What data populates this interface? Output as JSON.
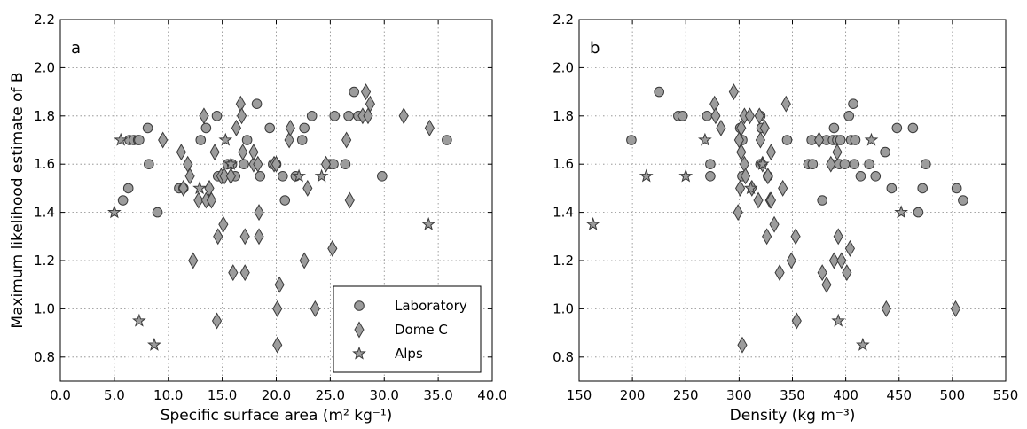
{
  "chart_data": [
    {
      "type": "scatter",
      "panel_label": "a",
      "xlabel": "Specific surface area (m² kg⁻¹)",
      "ylabel": "Maximum likelihood estimate of B",
      "xlim": [
        0,
        40
      ],
      "ylim": [
        0.7,
        2.2
      ],
      "xticks": [
        "0.0",
        "5.0",
        "10.0",
        "15.0",
        "20.0",
        "25.0",
        "30.0",
        "35.0",
        "40.0"
      ],
      "yticks": [
        "0.8",
        "1.0",
        "1.2",
        "1.4",
        "1.6",
        "1.8",
        "2.0",
        "2.2"
      ],
      "grid": true,
      "legend_position": "lower-right",
      "series": [
        {
          "name": "Laboratory",
          "marker": "circle",
          "points": [
            [
              5.8,
              1.45
            ],
            [
              6.3,
              1.5
            ],
            [
              6.4,
              1.7
            ],
            [
              6.8,
              1.7
            ],
            [
              7.2,
              1.7
            ],
            [
              7.3,
              1.7
            ],
            [
              8.2,
              1.6
            ],
            [
              8.1,
              1.75
            ],
            [
              9.0,
              1.4
            ],
            [
              11.0,
              1.5
            ],
            [
              11.4,
              1.5
            ],
            [
              13.0,
              1.7
            ],
            [
              13.5,
              1.75
            ],
            [
              13.8,
              1.45
            ],
            [
              14.5,
              1.8
            ],
            [
              14.6,
              1.55
            ],
            [
              15.5,
              1.6
            ],
            [
              15.9,
              1.6
            ],
            [
              16.2,
              1.55
            ],
            [
              17.0,
              1.6
            ],
            [
              17.3,
              1.7
            ],
            [
              18.1,
              1.6
            ],
            [
              18.2,
              1.85
            ],
            [
              18.5,
              1.55
            ],
            [
              19.4,
              1.75
            ],
            [
              19.7,
              1.6
            ],
            [
              20.0,
              1.6
            ],
            [
              20.6,
              1.55
            ],
            [
              20.8,
              1.45
            ],
            [
              21.8,
              1.55
            ],
            [
              22.4,
              1.7
            ],
            [
              22.6,
              1.75
            ],
            [
              23.3,
              1.8
            ],
            [
              24.7,
              1.6
            ],
            [
              25.0,
              1.6
            ],
            [
              25.3,
              1.6
            ],
            [
              25.4,
              1.8
            ],
            [
              26.4,
              1.6
            ],
            [
              26.7,
              1.8
            ],
            [
              27.2,
              1.9
            ],
            [
              27.6,
              1.8
            ],
            [
              29.8,
              1.55
            ],
            [
              35.8,
              1.7
            ]
          ]
        },
        {
          "name": "Dome C",
          "marker": "diamond",
          "points": [
            [
              9.5,
              1.7
            ],
            [
              11.2,
              1.65
            ],
            [
              11.4,
              1.5
            ],
            [
              11.8,
              1.6
            ],
            [
              12.0,
              1.55
            ],
            [
              12.3,
              1.2
            ],
            [
              12.8,
              1.45
            ],
            [
              13.3,
              1.8
            ],
            [
              13.5,
              1.45
            ],
            [
              13.8,
              1.5
            ],
            [
              14.0,
              1.45
            ],
            [
              14.3,
              1.65
            ],
            [
              14.5,
              0.95
            ],
            [
              14.6,
              1.3
            ],
            [
              14.9,
              1.55
            ],
            [
              15.1,
              1.35
            ],
            [
              15.2,
              1.55
            ],
            [
              15.8,
              1.55
            ],
            [
              16.0,
              1.15
            ],
            [
              16.3,
              1.75
            ],
            [
              16.7,
              1.85
            ],
            [
              16.8,
              1.8
            ],
            [
              16.9,
              1.65
            ],
            [
              17.1,
              1.15
            ],
            [
              17.1,
              1.3
            ],
            [
              17.9,
              1.6
            ],
            [
              17.9,
              1.65
            ],
            [
              18.3,
              1.6
            ],
            [
              18.4,
              1.4
            ],
            [
              18.4,
              1.3
            ],
            [
              19.8,
              1.6
            ],
            [
              20.0,
              1.6
            ],
            [
              20.1,
              0.85
            ],
            [
              20.1,
              1.0
            ],
            [
              20.3,
              1.1
            ],
            [
              21.2,
              1.7
            ],
            [
              21.3,
              1.75
            ],
            [
              22.6,
              1.2
            ],
            [
              22.9,
              1.5
            ],
            [
              23.6,
              1.0
            ],
            [
              24.6,
              1.6
            ],
            [
              25.2,
              1.25
            ],
            [
              26.5,
              1.7
            ],
            [
              26.8,
              1.45
            ],
            [
              28.0,
              1.8
            ],
            [
              28.3,
              1.9
            ],
            [
              28.5,
              1.8
            ],
            [
              28.7,
              1.85
            ],
            [
              31.8,
              1.8
            ],
            [
              34.2,
              1.75
            ]
          ]
        },
        {
          "name": "Alps",
          "marker": "star",
          "points": [
            [
              5.0,
              1.4
            ],
            [
              5.6,
              1.7
            ],
            [
              7.3,
              0.95
            ],
            [
              8.7,
              0.85
            ],
            [
              12.9,
              1.5
            ],
            [
              15.3,
              1.7
            ],
            [
              15.8,
              1.6
            ],
            [
              22.1,
              1.55
            ],
            [
              24.2,
              1.55
            ],
            [
              34.1,
              1.35
            ]
          ]
        }
      ]
    },
    {
      "type": "scatter",
      "panel_label": "b",
      "xlabel": "Density (kg m⁻³)",
      "ylabel": "",
      "xlim": [
        150,
        550
      ],
      "ylim": [
        0.7,
        2.2
      ],
      "xticks": [
        "150",
        "200",
        "250",
        "300",
        "350",
        "400",
        "450",
        "500",
        "550"
      ],
      "yticks": [
        "0.8",
        "1.0",
        "1.2",
        "1.4",
        "1.6",
        "1.8",
        "2.0",
        "2.2"
      ],
      "grid": true,
      "series": [
        {
          "name": "Laboratory",
          "marker": "circle",
          "points": [
            [
              199,
              1.7
            ],
            [
              225,
              1.9
            ],
            [
              243,
              1.8
            ],
            [
              247,
              1.8
            ],
            [
              270,
              1.8
            ],
            [
              273,
              1.55
            ],
            [
              273,
              1.6
            ],
            [
              301,
              1.75
            ],
            [
              303,
              1.7
            ],
            [
              303,
              1.55
            ],
            [
              320,
              1.8
            ],
            [
              321,
              1.75
            ],
            [
              320,
              1.6
            ],
            [
              327,
              1.55
            ],
            [
              345,
              1.7
            ],
            [
              365,
              1.6
            ],
            [
              368,
              1.7
            ],
            [
              369,
              1.6
            ],
            [
              378,
              1.45
            ],
            [
              382,
              1.7
            ],
            [
              387,
              1.6
            ],
            [
              388,
              1.7
            ],
            [
              389,
              1.75
            ],
            [
              392,
              1.7
            ],
            [
              394,
              1.6
            ],
            [
              395,
              1.7
            ],
            [
              399,
              1.6
            ],
            [
              403,
              1.8
            ],
            [
              405,
              1.7
            ],
            [
              407,
              1.85
            ],
            [
              408,
              1.6
            ],
            [
              409,
              1.7
            ],
            [
              414,
              1.55
            ],
            [
              422,
              1.6
            ],
            [
              428,
              1.55
            ],
            [
              437,
              1.65
            ],
            [
              443,
              1.5
            ],
            [
              448,
              1.75
            ],
            [
              463,
              1.75
            ],
            [
              468,
              1.4
            ],
            [
              472,
              1.5
            ],
            [
              475,
              1.6
            ],
            [
              504,
              1.5
            ],
            [
              510,
              1.45
            ]
          ]
        },
        {
          "name": "Dome C",
          "marker": "diamond",
          "points": [
            [
              277,
              1.85
            ],
            [
              278,
              1.8
            ],
            [
              283,
              1.75
            ],
            [
              295,
              1.9
            ],
            [
              299,
              1.4
            ],
            [
              300,
              1.7
            ],
            [
              301,
              1.5
            ],
            [
              302,
              1.75
            ],
            [
              302,
              1.65
            ],
            [
              303,
              0.85
            ],
            [
              305,
              1.8
            ],
            [
              305,
              1.6
            ],
            [
              306,
              1.55
            ],
            [
              310,
              1.8
            ],
            [
              312,
              1.5
            ],
            [
              318,
              1.45
            ],
            [
              319,
              1.8
            ],
            [
              320,
              1.7
            ],
            [
              322,
              1.6
            ],
            [
              324,
              1.75
            ],
            [
              326,
              1.3
            ],
            [
              327,
              1.55
            ],
            [
              329,
              1.45
            ],
            [
              330,
              1.65
            ],
            [
              330,
              1.45
            ],
            [
              333,
              1.35
            ],
            [
              338,
              1.15
            ],
            [
              341,
              1.5
            ],
            [
              344,
              1.85
            ],
            [
              349,
              1.2
            ],
            [
              353,
              1.3
            ],
            [
              354,
              0.95
            ],
            [
              375,
              1.7
            ],
            [
              378,
              1.15
            ],
            [
              382,
              1.1
            ],
            [
              386,
              1.6
            ],
            [
              389,
              1.2
            ],
            [
              392,
              1.65
            ],
            [
              393,
              1.3
            ],
            [
              396,
              1.2
            ],
            [
              401,
              1.15
            ],
            [
              404,
              1.25
            ],
            [
              438,
              1.0
            ],
            [
              503,
              1.0
            ]
          ]
        },
        {
          "name": "Alps",
          "marker": "star",
          "points": [
            [
              163,
              1.35
            ],
            [
              213,
              1.55
            ],
            [
              250,
              1.55
            ],
            [
              268,
              1.7
            ],
            [
              311,
              1.5
            ],
            [
              322,
              1.6
            ],
            [
              393,
              0.95
            ],
            [
              416,
              0.85
            ],
            [
              424,
              1.7
            ],
            [
              452,
              1.4
            ]
          ]
        }
      ]
    }
  ]
}
